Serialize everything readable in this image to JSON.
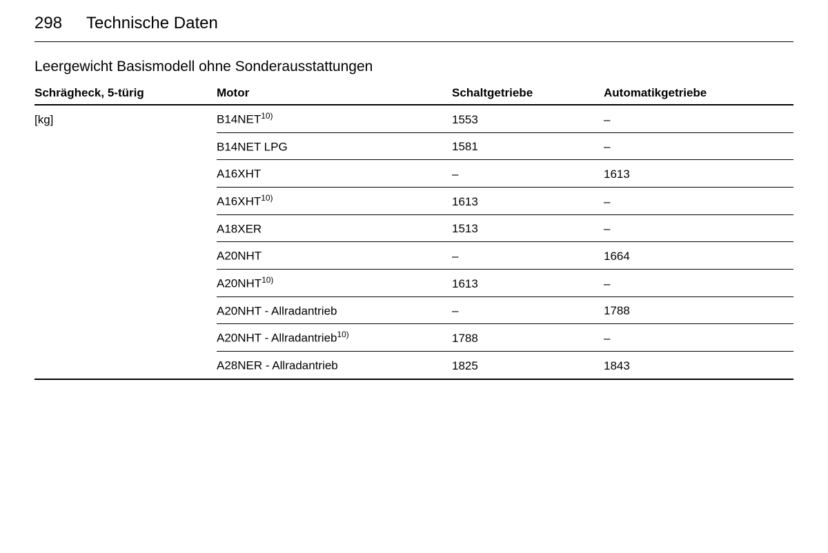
{
  "page": {
    "number": "298",
    "title": "Technische Daten"
  },
  "section": {
    "title": "Leergewicht Basismodell ohne Sonderausstattungen"
  },
  "table": {
    "headers": {
      "col1": "Schrägheck, 5-türig",
      "col2": "Motor",
      "col3": "Schaltgetriebe",
      "col4": "Automatikgetriebe"
    },
    "unit_label": "[kg]",
    "footnote_ref": "10)",
    "rows": [
      {
        "motor": "B14NET",
        "sup": "10)",
        "manual": "1553",
        "auto": "–"
      },
      {
        "motor": "B14NET LPG",
        "sup": "",
        "manual": "1581",
        "auto": "–"
      },
      {
        "motor": "A16XHT",
        "sup": "",
        "manual": "–",
        "auto": "1613"
      },
      {
        "motor": "A16XHT",
        "sup": "10)",
        "manual": "1613",
        "auto": "–"
      },
      {
        "motor": "A18XER",
        "sup": "",
        "manual": "1513",
        "auto": "–"
      },
      {
        "motor": "A20NHT",
        "sup": "",
        "manual": "–",
        "auto": "1664"
      },
      {
        "motor": "A20NHT",
        "sup": "10)",
        "manual": "1613",
        "auto": "–"
      },
      {
        "motor": "A20NHT - Allradantrieb",
        "sup": "",
        "manual": "–",
        "auto": "1788"
      },
      {
        "motor": "A20NHT - Allradantrieb",
        "sup": "10)",
        "manual": "1788",
        "auto": "–"
      },
      {
        "motor": "A28NER - Allradantrieb",
        "sup": "",
        "manual": "1825",
        "auto": "1843"
      }
    ]
  },
  "style": {
    "background_color": "#ffffff",
    "text_color": "#000000",
    "header_fontsize": 24,
    "section_title_fontsize": 21,
    "table_header_fontsize": 17,
    "table_cell_fontsize": 17,
    "header_border_width": 2,
    "row_border_width": 1,
    "col_widths_pct": [
      24,
      31,
      20,
      25
    ]
  }
}
